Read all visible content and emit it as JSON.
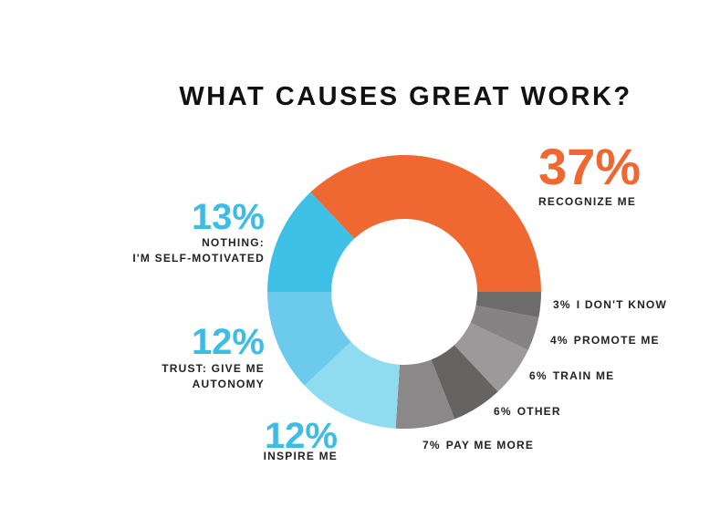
{
  "chart_data": {
    "type": "donut",
    "title": "WHAT CAUSES GREAT WORK?",
    "categories": [
      "RECOGNIZE ME",
      "I DON'T KNOW",
      "PROMOTE ME",
      "TRAIN ME",
      "OTHER",
      "PAY ME MORE",
      "INSPIRE ME",
      "TRUST: GIVE ME\nAUTONOMY",
      "NOTHING:\nI'M SELF-MOTIVATED"
    ],
    "values": [
      37,
      3,
      4,
      6,
      6,
      7,
      12,
      12,
      13
    ],
    "value_labels": [
      "37%",
      "3%",
      "4%",
      "6%",
      "6%",
      "7%",
      "12%",
      "12%",
      "13%"
    ],
    "colors": [
      "#ef6832",
      "#6e6b6b",
      "#858383",
      "#9b9999",
      "#666363",
      "#8a8888",
      "#8fdcf1",
      "#6ccbec",
      "#3fc0e6"
    ]
  }
}
